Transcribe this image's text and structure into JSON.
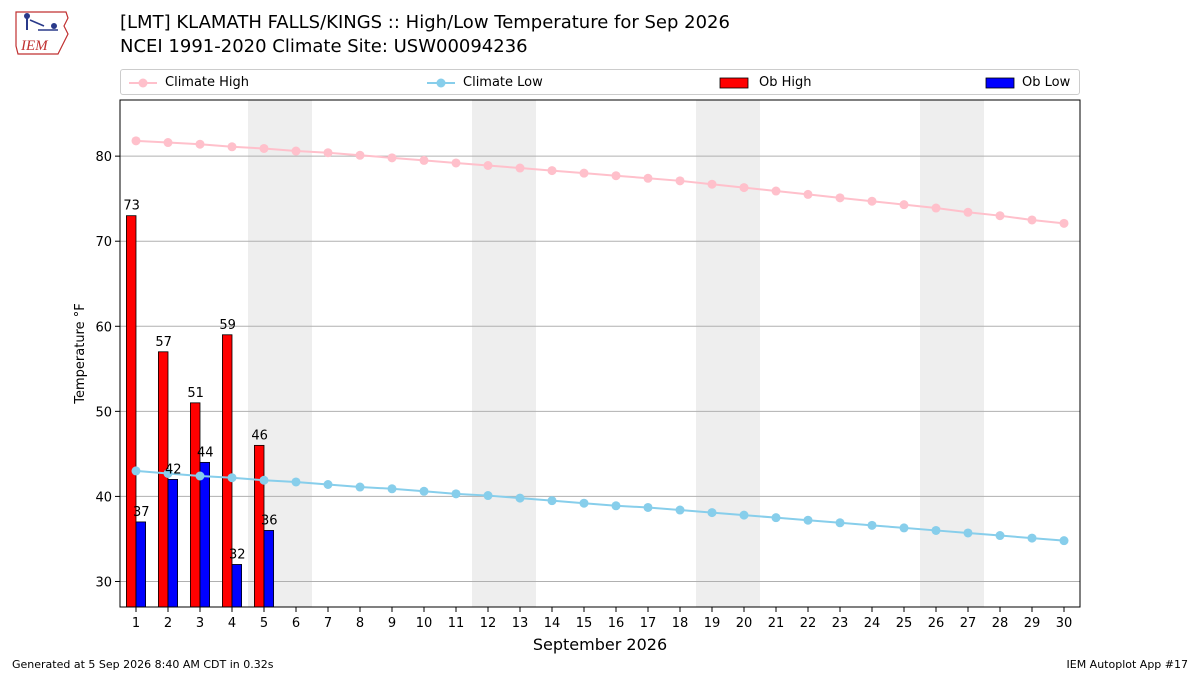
{
  "header": {
    "title_line1": "[LMT] KLAMATH FALLS/KINGS :: High/Low Temperature for Sep 2026",
    "title_line2": "NCEI 1991-2020 Climate Site: USW00094236",
    "logo_text": "IEM"
  },
  "legend": {
    "items": [
      {
        "label": "Climate High",
        "color": "#ffc0cb",
        "kind": "line"
      },
      {
        "label": "Climate Low",
        "color": "#87ceeb",
        "kind": "line"
      },
      {
        "label": "Ob High",
        "color": "#ff0000",
        "kind": "bar"
      },
      {
        "label": "Ob Low",
        "color": "#0000ff",
        "kind": "bar"
      }
    ]
  },
  "footer": {
    "generated": "Generated at 5 Sep 2026 8:40 AM CDT in 0.32s",
    "app": "IEM Autoplot App #17"
  },
  "chart_data": {
    "type": "bar",
    "title": "[LMT] KLAMATH FALLS/KINGS :: High/Low Temperature for Sep 2026",
    "subtitle": "NCEI 1991-2020 Climate Site: USW00094236",
    "xlabel": "September 2026",
    "ylabel": "Temperature °F",
    "ylim": [
      27,
      86.6
    ],
    "yticks": [
      30,
      40,
      50,
      60,
      70,
      80
    ],
    "xticks": [
      "1",
      "2",
      "3",
      "4",
      "5",
      "6",
      "7",
      "8",
      "9",
      "10",
      "11",
      "12",
      "13",
      "14",
      "15",
      "16",
      "17",
      "18",
      "19",
      "20",
      "21",
      "22",
      "23",
      "24",
      "25",
      "26",
      "27",
      "28",
      "29",
      "30"
    ],
    "grid": "horizontal",
    "legend_position": "top",
    "weekend_shading_days": [
      [
        5,
        6
      ],
      [
        12,
        13
      ],
      [
        19,
        20
      ],
      [
        26,
        27
      ]
    ],
    "series": [
      {
        "name": "Ob High",
        "type": "bar",
        "color": "#ff0000",
        "days": [
          1,
          2,
          3,
          4,
          5
        ],
        "values": [
          73,
          57,
          51,
          59,
          46
        ]
      },
      {
        "name": "Ob Low",
        "type": "bar",
        "color": "#0000ff",
        "days": [
          1,
          2,
          3,
          4,
          5
        ],
        "values": [
          37,
          42,
          44,
          32,
          36
        ]
      },
      {
        "name": "Climate High",
        "type": "line",
        "color": "#ffc0cb",
        "days": [
          1,
          2,
          3,
          4,
          5,
          6,
          7,
          8,
          9,
          10,
          11,
          12,
          13,
          14,
          15,
          16,
          17,
          18,
          19,
          20,
          21,
          22,
          23,
          24,
          25,
          26,
          27,
          28,
          29,
          30
        ],
        "values": [
          81.8,
          81.6,
          81.4,
          81.1,
          80.9,
          80.6,
          80.4,
          80.1,
          79.8,
          79.5,
          79.2,
          78.9,
          78.6,
          78.3,
          78.0,
          77.7,
          77.4,
          77.1,
          76.7,
          76.3,
          75.9,
          75.5,
          75.1,
          74.7,
          74.3,
          73.9,
          73.4,
          73.0,
          72.5,
          72.1
        ]
      },
      {
        "name": "Climate Low",
        "type": "line",
        "color": "#87ceeb",
        "days": [
          1,
          2,
          3,
          4,
          5,
          6,
          7,
          8,
          9,
          10,
          11,
          12,
          13,
          14,
          15,
          16,
          17,
          18,
          19,
          20,
          21,
          22,
          23,
          24,
          25,
          26,
          27,
          28,
          29,
          30
        ],
        "values": [
          43.0,
          42.7,
          42.4,
          42.2,
          41.9,
          41.7,
          41.4,
          41.1,
          40.9,
          40.6,
          40.3,
          40.1,
          39.8,
          39.5,
          39.2,
          38.9,
          38.7,
          38.4,
          38.1,
          37.8,
          37.5,
          37.2,
          36.9,
          36.6,
          36.3,
          36.0,
          35.7,
          35.4,
          35.1,
          34.8
        ]
      }
    ]
  }
}
